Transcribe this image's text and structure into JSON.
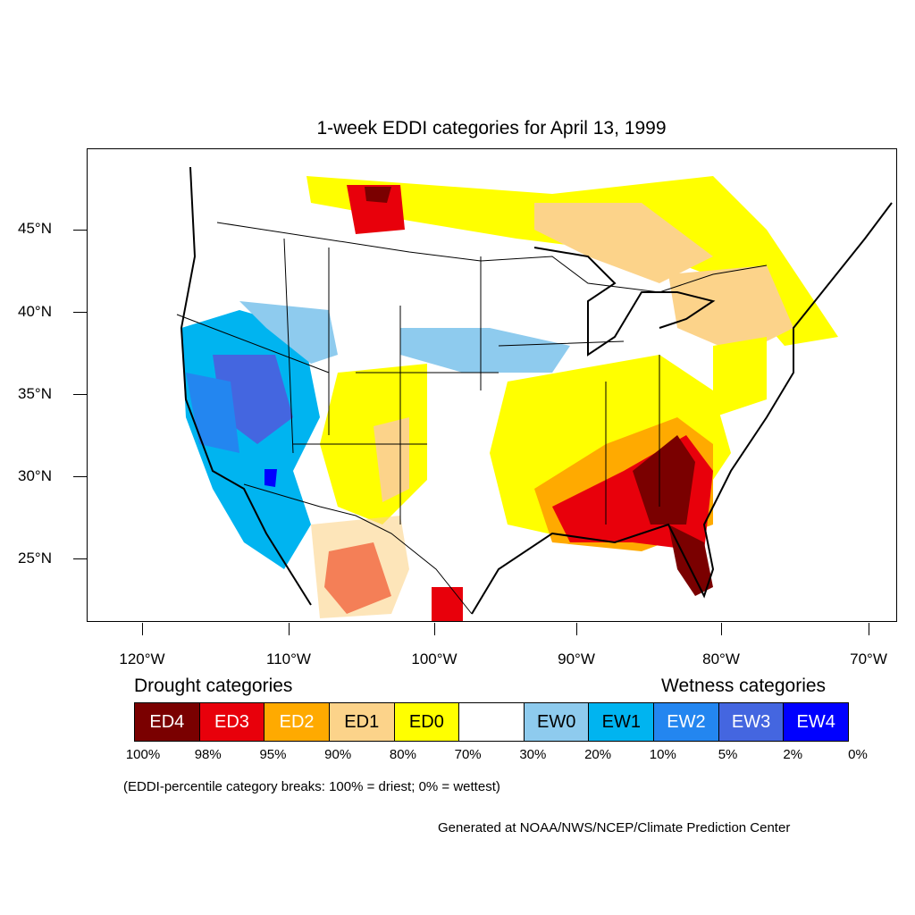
{
  "title": "1-week EDDI categories for April 13, 1999",
  "lat_labels": [
    "45°N",
    "40°N",
    "35°N",
    "30°N",
    "25°N"
  ],
  "lon_labels": [
    "120°W",
    "110°W",
    "100°W",
    "90°W",
    "80°W",
    "70°W"
  ],
  "legend": {
    "drought_heading": "Drought categories",
    "wetness_heading": "Wetness categories",
    "categories": [
      {
        "label": "ED4",
        "color": "#7a0000",
        "text_color": "#ffffff"
      },
      {
        "label": "ED3",
        "color": "#e8000b",
        "text_color": "#ffffff"
      },
      {
        "label": "ED2",
        "color": "#ffaa00",
        "text_color": "#ffffff"
      },
      {
        "label": "ED1",
        "color": "#fcd38a",
        "text_color": "#000000"
      },
      {
        "label": "ED0",
        "color": "#ffff00",
        "text_color": "#000000"
      },
      {
        "label": "",
        "color": "#ffffff",
        "text_color": "#000000"
      },
      {
        "label": "EW0",
        "color": "#8ecbee",
        "text_color": "#000000"
      },
      {
        "label": "EW1",
        "color": "#00b4f0",
        "text_color": "#000000"
      },
      {
        "label": "EW2",
        "color": "#2386f0",
        "text_color": "#ffffff"
      },
      {
        "label": "EW3",
        "color": "#4466e0",
        "text_color": "#ffffff"
      },
      {
        "label": "EW4",
        "color": "#0000ff",
        "text_color": "#ffffff"
      }
    ],
    "breaks": [
      "100%",
      "98%",
      "95%",
      "90%",
      "80%",
      "70%",
      "30%",
      "20%",
      "10%",
      "5%",
      "2%",
      "0%"
    ]
  },
  "note": "(EDDI-percentile category breaks: 100% = driest; 0% = wettest)",
  "credit": "Generated at NOAA/NWS/NCEP/Climate Prediction Center"
}
